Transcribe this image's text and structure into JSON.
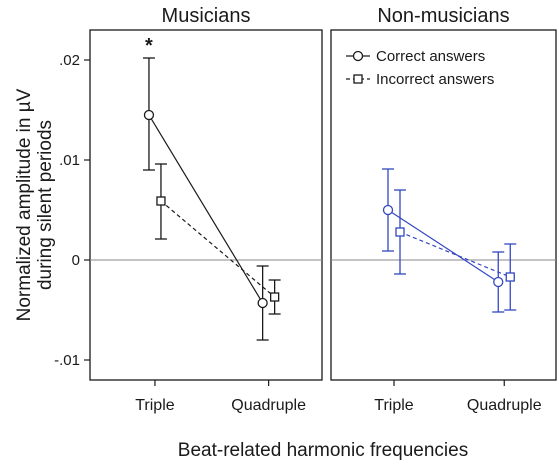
{
  "chart_data": {
    "type": "line",
    "xlabel": "Beat-related harmonic frequencies",
    "ylabel_lines": [
      "Normalized amplitude in µV",
      "during silent periods"
    ],
    "categories": [
      "Triple",
      "Quadruple"
    ],
    "ylim": [
      -0.012,
      0.023
    ],
    "yticks": [
      {
        "value": 0.02,
        "label": ".02"
      },
      {
        "value": 0.01,
        "label": ".01"
      },
      {
        "value": 0,
        "label": "0"
      },
      {
        "value": -0.01,
        "label": "-.01"
      }
    ],
    "reference_line": 0,
    "legend": {
      "location": "top-right of Non-musicians panel",
      "entries": [
        {
          "label": "Correct answers",
          "line": "solid",
          "marker": "circle"
        },
        {
          "label": "Incorrect answers",
          "line": "dashed",
          "marker": "square"
        }
      ]
    },
    "panels": [
      {
        "title": "Musicians",
        "color": "#1a1a1a",
        "series": [
          {
            "key": "correct",
            "values": [
              0.0145,
              -0.0043
            ],
            "err_low": [
              0.009,
              -0.008
            ],
            "err_high": [
              0.0202,
              -0.0006
            ]
          },
          {
            "key": "incorrect",
            "values": [
              0.0059,
              -0.0037
            ],
            "err_low": [
              0.0021,
              -0.0054
            ],
            "err_high": [
              0.0096,
              -0.002
            ]
          }
        ],
        "annotations": [
          {
            "text": "*",
            "category": "Triple"
          }
        ]
      },
      {
        "title": "Non-musicians",
        "color": "#3347c4",
        "series": [
          {
            "key": "correct",
            "values": [
              0.005,
              -0.0022
            ],
            "err_low": [
              0.0009,
              -0.0052
            ],
            "err_high": [
              0.0091,
              0.0008
            ]
          },
          {
            "key": "incorrect",
            "values": [
              0.0028,
              -0.0017
            ],
            "err_low": [
              -0.0014,
              -0.005
            ],
            "err_high": [
              0.007,
              0.0016
            ]
          }
        ],
        "annotations": []
      }
    ]
  }
}
